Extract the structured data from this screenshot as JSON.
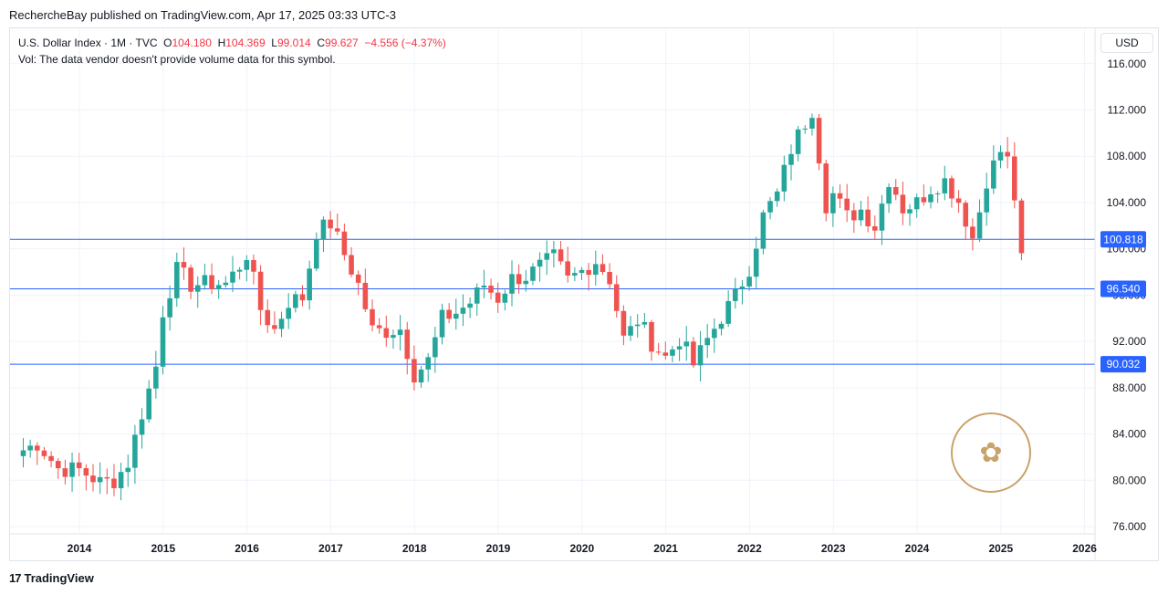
{
  "header": {
    "published": "RechercheBay published on TradingView.com, Apr 17, 2025 03:33 UTC-3"
  },
  "legend": {
    "symbol": "U.S. Dollar Index · 1M · TVC",
    "o_label": "O",
    "o_value": "104.180",
    "h_label": "H",
    "h_value": "104.369",
    "l_label": "L",
    "l_value": "99.014",
    "c_label": "C",
    "c_value": "99.627",
    "change": "−4.556 (−4.37%)",
    "vol": "Vol: The data vendor doesn't provide volume data for this symbol."
  },
  "currency_label": "USD",
  "footer": {
    "brand": "TradingView",
    "logo_text": "17"
  },
  "colors": {
    "up": "#26a69a",
    "down": "#ef5350",
    "hline": "#2962ff",
    "grid": "#f0f3fa",
    "label_bg": "#2962ff"
  },
  "chart_data": {
    "type": "candlestick",
    "title": "U.S. Dollar Index · 1M · TVC",
    "ylim": [
      75,
      117.5
    ],
    "y_ticks": [
      "76.000",
      "80.000",
      "84.000",
      "88.000",
      "92.000",
      "96.000",
      "100.000",
      "104.000",
      "108.000",
      "112.000",
      "116.000"
    ],
    "x_ticks": [
      "2014",
      "2015",
      "2016",
      "2017",
      "2018",
      "2019",
      "2020",
      "2021",
      "2022",
      "2023",
      "2024",
      "2025",
      "2026"
    ],
    "x_range": [
      2013.33,
      2026.17
    ],
    "horizontal_lines": [
      {
        "value": 100.818,
        "label": "100.818"
      },
      {
        "value": 96.54,
        "label": "96.540"
      },
      {
        "value": 90.032,
        "label": "90.032"
      }
    ],
    "anchors": [
      [
        2013.33,
        82.6
      ],
      [
        2013.5,
        83.2
      ],
      [
        2013.75,
        81.0
      ],
      [
        2014.0,
        80.9
      ],
      [
        2014.25,
        79.8
      ],
      [
        2014.42,
        80.0
      ],
      [
        2014.58,
        81.5
      ],
      [
        2014.75,
        85.9
      ],
      [
        2014.92,
        90.0
      ],
      [
        2015.0,
        94.8
      ],
      [
        2015.17,
        98.3
      ],
      [
        2015.33,
        96.9
      ],
      [
        2015.5,
        97.0
      ],
      [
        2015.75,
        97.0
      ],
      [
        2015.92,
        98.6
      ],
      [
        2016.0,
        99.6
      ],
      [
        2016.17,
        94.6
      ],
      [
        2016.33,
        93.0
      ],
      [
        2016.5,
        95.5
      ],
      [
        2016.67,
        95.8
      ],
      [
        2016.83,
        101.5
      ],
      [
        2017.0,
        102.2
      ],
      [
        2017.17,
        99.4
      ],
      [
        2017.33,
        96.9
      ],
      [
        2017.5,
        92.9
      ],
      [
        2017.67,
        92.9
      ],
      [
        2017.83,
        93.1
      ],
      [
        2018.0,
        89.1
      ],
      [
        2018.17,
        90.4
      ],
      [
        2018.33,
        94.0
      ],
      [
        2018.5,
        94.5
      ],
      [
        2018.67,
        95.4
      ],
      [
        2018.83,
        96.9
      ],
      [
        2019.0,
        95.7
      ],
      [
        2019.17,
        97.5
      ],
      [
        2019.33,
        97.6
      ],
      [
        2019.5,
        98.5
      ],
      [
        2019.67,
        99.3
      ],
      [
        2019.83,
        97.3
      ],
      [
        2020.0,
        98.1
      ],
      [
        2020.17,
        99.0
      ],
      [
        2020.33,
        97.4
      ],
      [
        2020.5,
        92.1
      ],
      [
        2020.67,
        93.9
      ],
      [
        2020.83,
        91.9
      ],
      [
        2021.0,
        90.6
      ],
      [
        2021.17,
        92.3
      ],
      [
        2021.33,
        90.0
      ],
      [
        2021.5,
        92.2
      ],
      [
        2021.67,
        94.2
      ],
      [
        2021.83,
        95.9
      ],
      [
        2022.0,
        98.4
      ],
      [
        2022.17,
        103.0
      ],
      [
        2022.33,
        104.7
      ],
      [
        2022.5,
        108.7
      ],
      [
        2022.75,
        112.1
      ],
      [
        2022.92,
        103.5
      ],
      [
        2023.0,
        104.8
      ],
      [
        2023.17,
        102.7
      ],
      [
        2023.33,
        103.4
      ],
      [
        2023.5,
        101.9
      ],
      [
        2023.67,
        106.2
      ],
      [
        2023.83,
        103.5
      ],
      [
        2024.0,
        104.0
      ],
      [
        2024.17,
        105.3
      ],
      [
        2024.33,
        105.9
      ],
      [
        2024.5,
        104.1
      ],
      [
        2024.67,
        100.8
      ],
      [
        2024.83,
        106.0
      ],
      [
        2025.0,
        108.5
      ],
      [
        2025.08,
        107.6
      ],
      [
        2025.17,
        104.2
      ],
      [
        2025.29,
        99.6
      ]
    ]
  }
}
